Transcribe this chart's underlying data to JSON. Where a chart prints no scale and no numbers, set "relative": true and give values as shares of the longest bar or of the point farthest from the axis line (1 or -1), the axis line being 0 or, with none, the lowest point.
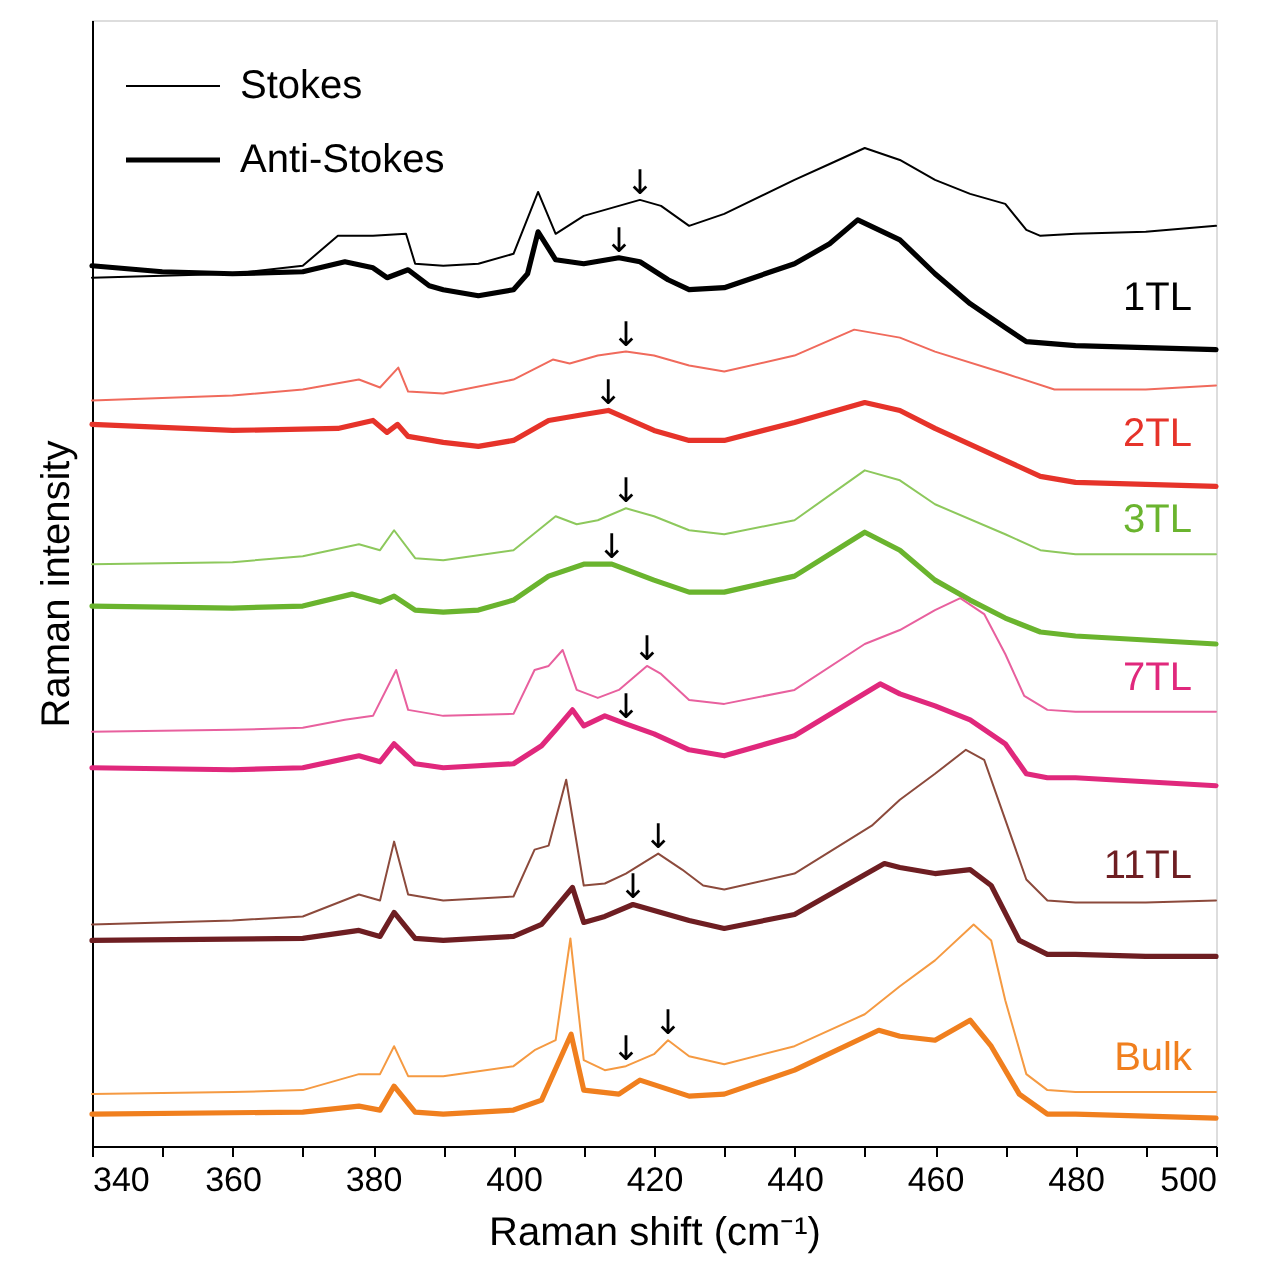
{
  "chart_data": {
    "type": "line",
    "relative": true,
    "xlabel": "Raman shift (cm⁻¹)",
    "ylabel": "Raman intensity",
    "xlim": [
      340,
      500
    ],
    "xticks": [
      340,
      {
        "value": 350,
        "label": null
      },
      360,
      {
        "value": 370,
        "label": null
      },
      380,
      {
        "value": 390,
        "label": null
      },
      400,
      {
        "value": 410,
        "label": null
      },
      420,
      {
        "value": 430,
        "label": null
      },
      440,
      {
        "value": 450,
        "label": null
      },
      460,
      {
        "value": 470,
        "label": null
      },
      480,
      {
        "value": 490,
        "label": null
      },
      500
    ],
    "legend": "top left",
    "series": [
      {
        "name": "Stokes",
        "color": "#000000",
        "x": [
          340,
          350,
          360,
          370,
          375,
          380,
          384.7,
          386,
          390,
          395,
          400,
          403.5,
          406,
          410,
          415,
          418,
          421,
          425,
          430,
          440,
          445,
          450,
          455,
          460,
          465,
          470,
          473,
          475,
          480,
          490,
          500
        ],
        "values": [
          0.87,
          0.872,
          0.874,
          0.882,
          0.912,
          0.912,
          0.914,
          0.884,
          0.882,
          0.884,
          0.894,
          0.956,
          0.914,
          0.932,
          0.942,
          0.948,
          0.942,
          0.922,
          0.934,
          0.968,
          0.984,
          1.0,
          0.988,
          0.968,
          0.954,
          0.944,
          0.918,
          0.912,
          0.914,
          0.916,
          0.922
        ]
      },
      {
        "name": "Anti-Stokes",
        "color": "#000000",
        "x": [
          340,
          350,
          360,
          370,
          376,
          380,
          382,
          385,
          388,
          390,
          395,
          400,
          402,
          403.5,
          406,
          410,
          415,
          418,
          422,
          425,
          430,
          440,
          445,
          449,
          455,
          460,
          465,
          470,
          473,
          480,
          490,
          500
        ],
        "values": [
          0.882,
          0.876,
          0.874,
          0.876,
          0.886,
          0.88,
          0.87,
          0.878,
          0.862,
          0.858,
          0.852,
          0.858,
          0.874,
          0.916,
          0.888,
          0.884,
          0.89,
          0.886,
          0.868,
          0.858,
          0.86,
          0.884,
          0.904,
          0.928,
          0.908,
          0.874,
          0.844,
          0.82,
          0.806,
          0.802,
          0.8,
          0.798
        ]
      },
      {
        "color": "#f06a5c",
        "x": [
          340,
          360,
          370,
          378,
          381,
          383.6,
          385,
          390,
          400,
          405.6,
          408,
          412,
          416,
          420,
          425,
          430,
          440,
          448.5,
          455,
          460,
          470,
          477,
          480,
          490,
          500
        ],
        "values": [
          0.747,
          0.752,
          0.758,
          0.768,
          0.76,
          0.78,
          0.756,
          0.754,
          0.768,
          0.788,
          0.784,
          0.792,
          0.796,
          0.792,
          0.782,
          0.776,
          0.792,
          0.818,
          0.81,
          0.796,
          0.774,
          0.758,
          0.758,
          0.758,
          0.762
        ]
      },
      {
        "color": "#e6332a",
        "x": [
          340,
          360,
          375,
          380,
          382,
          383.5,
          385,
          390,
          395,
          400,
          405,
          410,
          413.5,
          420,
          425,
          430,
          440,
          450,
          455,
          460,
          470,
          475,
          480,
          490,
          500
        ],
        "values": [
          0.723,
          0.717,
          0.719,
          0.727,
          0.715,
          0.723,
          0.711,
          0.705,
          0.701,
          0.707,
          0.727,
          0.733,
          0.737,
          0.717,
          0.707,
          0.707,
          0.725,
          0.745,
          0.737,
          0.719,
          0.687,
          0.671,
          0.665,
          0.663,
          0.661
        ]
      },
      {
        "color": "#8dc85c",
        "x": [
          340,
          360,
          370,
          378,
          381,
          383,
          386,
          390,
          400,
          406,
          409,
          412,
          416,
          420,
          425,
          430,
          440,
          450,
          455,
          460,
          470,
          475,
          480,
          490,
          500
        ],
        "values": [
          0.583,
          0.585,
          0.591,
          0.603,
          0.597,
          0.617,
          0.589,
          0.587,
          0.597,
          0.631,
          0.623,
          0.627,
          0.639,
          0.631,
          0.617,
          0.613,
          0.627,
          0.677,
          0.667,
          0.643,
          0.613,
          0.597,
          0.593,
          0.593,
          0.593
        ]
      },
      {
        "color": "#6ab42e",
        "x": [
          340,
          360,
          370,
          377,
          381,
          383,
          386,
          390,
          395,
          400,
          405,
          410,
          414,
          420,
          425,
          430,
          440,
          450,
          455,
          460,
          465,
          470,
          475,
          480,
          490,
          500
        ],
        "values": [
          0.541,
          0.539,
          0.541,
          0.553,
          0.545,
          0.551,
          0.537,
          0.535,
          0.537,
          0.547,
          0.571,
          0.583,
          0.583,
          0.567,
          0.555,
          0.555,
          0.571,
          0.615,
          0.597,
          0.567,
          0.547,
          0.529,
          0.515,
          0.511,
          0.507,
          0.503
        ]
      },
      {
        "color": "#e8609e",
        "x": [
          340,
          360,
          370,
          376,
          380,
          383.3,
          385,
          390,
          400,
          403,
          405,
          407,
          409,
          412,
          415,
          419,
          421,
          425,
          430,
          440,
          450,
          455,
          460,
          463.6,
          467,
          470,
          472.7,
          476,
          480,
          490,
          500
        ],
        "values": [
          0.415,
          0.417,
          0.419,
          0.427,
          0.431,
          0.477,
          0.437,
          0.431,
          0.433,
          0.477,
          0.481,
          0.497,
          0.457,
          0.449,
          0.457,
          0.481,
          0.473,
          0.447,
          0.443,
          0.457,
          0.503,
          0.517,
          0.537,
          0.549,
          0.533,
          0.493,
          0.451,
          0.437,
          0.435,
          0.435,
          0.435
        ]
      },
      {
        "color": "#e0287c",
        "x": [
          340,
          360,
          370,
          378,
          381,
          383,
          386,
          390,
          400,
          404,
          406,
          408.4,
          410,
          413,
          416,
          420,
          425,
          430,
          440,
          452.2,
          455,
          460,
          465,
          470,
          473,
          476,
          480,
          490,
          500
        ],
        "values": [
          0.379,
          0.377,
          0.379,
          0.391,
          0.385,
          0.403,
          0.383,
          0.379,
          0.383,
          0.401,
          0.417,
          0.437,
          0.421,
          0.431,
          0.423,
          0.413,
          0.397,
          0.391,
          0.411,
          0.463,
          0.453,
          0.441,
          0.427,
          0.403,
          0.373,
          0.369,
          0.369,
          0.365,
          0.361
        ]
      },
      {
        "color": "#8c4a3c",
        "x": [
          340,
          360,
          370,
          378,
          381,
          383,
          385,
          390,
          400,
          403,
          405,
          407.5,
          410,
          413,
          416,
          420.6,
          424,
          427,
          430,
          440,
          451,
          455,
          460,
          464.4,
          467,
          470,
          473,
          476,
          480,
          490,
          500
        ],
        "values": [
          0.222,
          0.226,
          0.23,
          0.252,
          0.246,
          0.305,
          0.252,
          0.246,
          0.25,
          0.297,
          0.301,
          0.367,
          0.261,
          0.263,
          0.273,
          0.293,
          0.277,
          0.261,
          0.257,
          0.273,
          0.321,
          0.347,
          0.373,
          0.397,
          0.387,
          0.327,
          0.267,
          0.246,
          0.244,
          0.244,
          0.246
        ]
      },
      {
        "color": "#6e1e22",
        "x": [
          340,
          370,
          378,
          381,
          383,
          386,
          390,
          400,
          404,
          408.4,
          410,
          413,
          417,
          420,
          425,
          430,
          440,
          452.8,
          455,
          460,
          465,
          468,
          472,
          476,
          480,
          490,
          500
        ],
        "values": [
          0.206,
          0.208,
          0.216,
          0.21,
          0.234,
          0.208,
          0.206,
          0.21,
          0.222,
          0.259,
          0.224,
          0.23,
          0.242,
          0.236,
          0.226,
          0.218,
          0.232,
          0.283,
          0.279,
          0.273,
          0.277,
          0.261,
          0.206,
          0.192,
          0.192,
          0.19,
          0.19
        ]
      },
      {
        "color": "#f59a42",
        "x": [
          340,
          360,
          370,
          378,
          381,
          383,
          385,
          390,
          400,
          403,
          406,
          408.1,
          410,
          413,
          416,
          420,
          422,
          425,
          430,
          440,
          450,
          455,
          460,
          465.5,
          468,
          470,
          473,
          476,
          480,
          500
        ],
        "values": [
          0.052,
          0.054,
          0.056,
          0.072,
          0.072,
          0.1,
          0.07,
          0.07,
          0.08,
          0.096,
          0.106,
          0.208,
          0.086,
          0.076,
          0.08,
          0.092,
          0.106,
          0.09,
          0.082,
          0.1,
          0.132,
          0.16,
          0.186,
          0.222,
          0.206,
          0.146,
          0.072,
          0.056,
          0.054,
          0.054
        ]
      },
      {
        "color": "#f07f1e",
        "x": [
          340,
          370,
          378,
          381,
          383,
          386,
          390,
          400,
          404,
          408.2,
          410,
          415,
          418,
          425,
          430,
          440,
          452,
          455,
          460,
          465,
          468,
          472,
          476,
          480,
          500
        ],
        "values": [
          0.032,
          0.034,
          0.04,
          0.036,
          0.06,
          0.034,
          0.032,
          0.036,
          0.046,
          0.112,
          0.056,
          0.052,
          0.066,
          0.05,
          0.052,
          0.076,
          0.116,
          0.11,
          0.106,
          0.126,
          0.1,
          0.052,
          0.032,
          0.032,
          0.028
        ]
      }
    ],
    "annotations": [
      "1TL",
      "2TL",
      "3TL",
      "7TL",
      "11TL",
      "Bulk",
      {
        "text": "↓",
        "x": 418,
        "y": 0.948
      },
      {
        "text": "↓",
        "x": 415,
        "y": 0.89
      },
      {
        "text": "↓",
        "x": 416,
        "y": 0.796
      },
      {
        "text": "↓",
        "x": 413.5,
        "y": 0.737
      },
      {
        "text": "↓",
        "x": 416,
        "y": 0.639
      },
      {
        "text": "↓",
        "x": 414,
        "y": 0.583
      },
      {
        "text": "↓",
        "x": 419,
        "y": 0.481
      },
      {
        "text": "↓",
        "x": 416,
        "y": 0.423
      },
      {
        "text": "↓",
        "x": 420.6,
        "y": 0.293
      },
      {
        "text": "↓",
        "x": 417,
        "y": 0.242
      },
      {
        "text": "↓",
        "x": 416,
        "y": 0.08
      },
      {
        "text": "↓",
        "x": 422,
        "y": 0.106
      }
    ]
  }
}
